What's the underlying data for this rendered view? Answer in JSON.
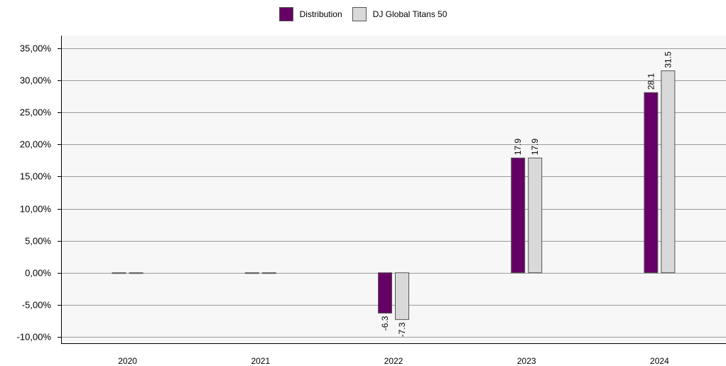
{
  "chart_data": {
    "type": "bar",
    "categories": [
      "2020",
      "2021",
      "2022",
      "2023",
      "2024"
    ],
    "series": [
      {
        "name": "Distribution",
        "values": [
          0,
          0,
          -6.3,
          17.9,
          28.1
        ],
        "labels": [
          "",
          "",
          "-6.3",
          "17.9",
          "28.1"
        ]
      },
      {
        "name": "DJ Global Titans 50",
        "values": [
          0,
          0,
          -7.3,
          17.9,
          31.5
        ],
        "labels": [
          "",
          "",
          "-7.3",
          "17.9",
          "31.5"
        ]
      }
    ],
    "colors": [
      "#660066",
      "#d9d9d9"
    ],
    "y_ticks": [
      35,
      30,
      25,
      20,
      15,
      10,
      5,
      0,
      -5,
      -10
    ],
    "y_tick_labels": [
      "35,00%",
      "30,00%",
      "25,00%",
      "20,00%",
      "15,00%",
      "10,00%",
      "5,00%",
      "0,00%",
      "-5,00%",
      "-10,00%"
    ],
    "ylim": [
      -11,
      37
    ],
    "grid": true,
    "legend_position": "top-center",
    "plot_background": "#f7f7f7"
  }
}
